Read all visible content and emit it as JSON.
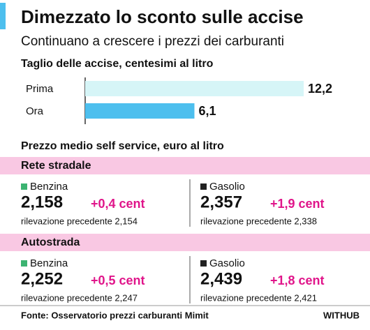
{
  "header": {
    "title": "Dimezzato lo sconto sulle accise",
    "subtitle": "Continuano a crescere i prezzi dei carburanti"
  },
  "chart_data": {
    "type": "bar",
    "orientation": "horizontal",
    "title": "Taglio delle accise, centesimi al litro",
    "categories": [
      "Prima",
      "Ora"
    ],
    "values": [
      12.2,
      6.1
    ],
    "value_labels": [
      "12,2",
      "6,1"
    ],
    "colors": [
      "#d6f5f7",
      "#4dbfee"
    ]
  },
  "prices": {
    "title": "Prezzo medio self service, euro al litro",
    "sections": [
      {
        "name": "Rete stradale",
        "items": [
          {
            "fuel": "Benzina",
            "price": "2,158",
            "change": "+0,4 cent",
            "previous": "rilevazione precedente 2,154"
          },
          {
            "fuel": "Gasolio",
            "price": "2,357",
            "change": "+1,9 cent",
            "previous": "rilevazione precedente 2,338"
          }
        ]
      },
      {
        "name": "Autostrada",
        "items": [
          {
            "fuel": "Benzina",
            "price": "2,252",
            "change": "+0,5 cent",
            "previous": "rilevazione precedente 2,247"
          },
          {
            "fuel": "Gasolio",
            "price": "2,439",
            "change": "+1,8 cent",
            "previous": "rilevazione precedente 2,421"
          }
        ]
      }
    ]
  },
  "footer": {
    "source": "Fonte: Osservatorio prezzi carburanti Mimit",
    "brand": "WITHUB"
  }
}
